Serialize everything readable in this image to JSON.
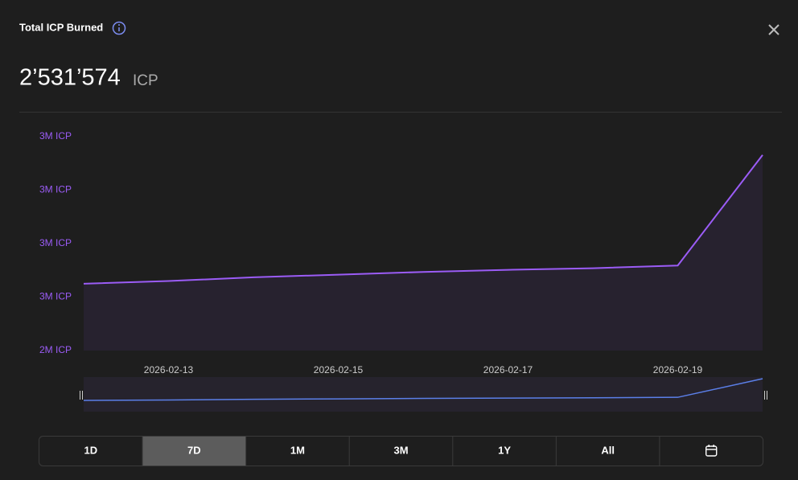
{
  "header": {
    "title": "Total ICP Burned",
    "value": "2’531’574",
    "unit": "ICP"
  },
  "chart_data": {
    "type": "area",
    "x": [
      "2026-02-12",
      "2026-02-13",
      "2026-02-14",
      "2026-02-15",
      "2026-02-16",
      "2026-02-17",
      "2026-02-18",
      "2026-02-19",
      "2026-02-20"
    ],
    "series": [
      {
        "name": "Total ICP Burned",
        "color": "#9b5cf6",
        "values": [
          2507500,
          2508000,
          2508700,
          2509200,
          2509700,
          2510100,
          2510400,
          2510900,
          2531574
        ]
      }
    ],
    "xlim": [
      "2026-02-12",
      "2026-02-20"
    ],
    "xticks": [
      "2026-02-13",
      "2026-02-15",
      "2026-02-17",
      "2026-02-19"
    ],
    "ylim": [
      2495000,
      2535000
    ],
    "yticks": [
      {
        "value": 2495000,
        "label": "2M ICP"
      },
      {
        "value": 2505000,
        "label": "3M ICP"
      },
      {
        "value": 2515000,
        "label": "3M ICP"
      },
      {
        "value": 2525000,
        "label": "3M ICP"
      },
      {
        "value": 2535000,
        "label": "3M ICP"
      }
    ],
    "navigator_color": "#5b7fe8"
  },
  "range_buttons": {
    "options": [
      "1D",
      "7D",
      "1M",
      "3M",
      "1Y",
      "All"
    ],
    "active": "7D"
  }
}
